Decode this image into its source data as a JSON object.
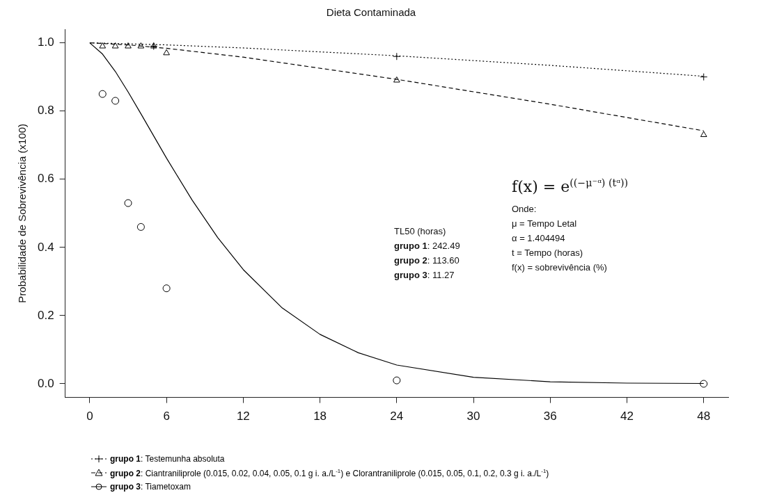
{
  "chart_data": {
    "type": "scatter",
    "title": "Dieta Contaminada",
    "ylabel": "Probabilidade de Sobrevivência (x100)",
    "xlim": [
      -1.92,
      49.92
    ],
    "ylim": [
      -0.04,
      1.04
    ],
    "xticks": [
      0,
      6,
      12,
      18,
      24,
      30,
      36,
      42,
      48
    ],
    "yticks": [
      {
        "value": 0,
        "label": "0.0"
      },
      {
        "value": 0.2,
        "label": "0.2"
      },
      {
        "value": 0.4,
        "label": "0.4"
      },
      {
        "value": 0.6,
        "label": "0.6"
      },
      {
        "value": 0.8,
        "label": "0.8"
      },
      {
        "value": 1,
        "label": "1.0"
      }
    ],
    "grid": false,
    "legend": "bottom",
    "series": [
      {
        "marker": "cross",
        "color": "#000000",
        "x": [
          5,
          24,
          48
        ],
        "values": [
          0.99,
          0.96,
          0.9
        ]
      },
      {
        "name": "grupo 1: Testemunha absoluta",
        "type": "line",
        "marker": "none",
        "line_style": "dotted",
        "color": "#000000",
        "x": [
          0,
          6,
          12,
          24,
          36,
          48
        ],
        "values": [
          1,
          0.994,
          0.985,
          0.962,
          0.934,
          0.902
        ]
      },
      {
        "marker": "triangle",
        "color": "#000000",
        "x": [
          1,
          2,
          3,
          4,
          5,
          6,
          24,
          48
        ],
        "values": [
          0.99,
          0.99,
          0.99,
          0.99,
          0.99,
          0.97,
          0.89,
          0.73
        ]
      },
      {
        "name": "grupo 2: Ciantraniliprole (0.015, 0.02, 0.04, 0.05, 0.1 g i. a./L$^{-1}$) e Clorantraniliprole (0.015, 0.05, 0.1, 0.2, 0.3 g i. a./L$^{-1}$)",
        "type": "line",
        "marker": "none",
        "line_style": "dashed",
        "color": "#000000",
        "x": [
          0,
          3,
          6,
          12,
          24,
          36,
          48
        ],
        "values": [
          1,
          0.994,
          0.984,
          0.958,
          0.893,
          0.82,
          0.742
        ]
      },
      {
        "marker": "circle",
        "color": "#000000",
        "x": [
          1,
          2,
          3,
          4,
          6,
          24,
          48
        ],
        "values": [
          0.85,
          0.83,
          0.53,
          0.46,
          0.28,
          0.01,
          0
        ]
      },
      {
        "name": "grupo 3: Tiametoxam",
        "type": "line",
        "marker": "none",
        "line_style": "solid",
        "color": "#000000",
        "x": [
          0,
          1,
          2,
          3,
          4,
          6,
          8,
          10,
          12,
          15,
          18,
          21,
          24,
          30,
          36,
          42,
          48
        ],
        "values": [
          1,
          0.967,
          0.916,
          0.856,
          0.792,
          0.662,
          0.539,
          0.429,
          0.335,
          0.224,
          0.145,
          0.091,
          0.055,
          0.019,
          0.006,
          0.002,
          0.001
        ]
      }
    ],
    "annotations": [
      "TL50 (horas)",
      "grupo 1: 242.49",
      "grupo 2: 113.60",
      "grupo 3: 11.27",
      "f(x) = e$^{((−μ⁻ᵅ) (tᵅ))}$",
      "Onde:",
      "μ = Tempo Letal",
      "α = 1.404494",
      "t = Tempo (horas)",
      "f(x) = sobrevivência (%)"
    ]
  }
}
